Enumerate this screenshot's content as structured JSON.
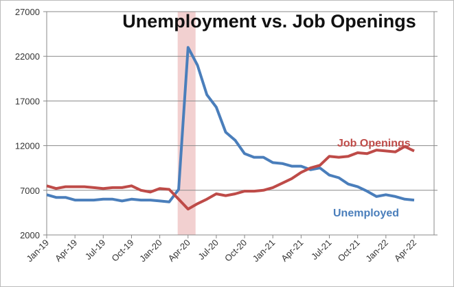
{
  "chart_data": {
    "type": "line",
    "title": "Unemployment vs. Job Openings",
    "categories": [
      "Jan-19",
      null,
      null,
      "Apr-19",
      null,
      null,
      "Jul-19",
      null,
      null,
      "Oct-19",
      null,
      null,
      "Jan-20",
      null,
      null,
      "Apr-20",
      null,
      null,
      "Jul-20",
      null,
      null,
      "Oct-20",
      null,
      null,
      "Jan-21",
      null,
      null,
      "Apr-21",
      null,
      null,
      "Jul-21",
      null,
      null,
      "Oct-21",
      null,
      null,
      "Jan-22",
      null,
      null,
      "Apr-22"
    ],
    "series": [
      {
        "name": "Unemployed",
        "color": "#4a7ebb",
        "values": [
          6500,
          6200,
          6200,
          5900,
          5900,
          5900,
          6000,
          6000,
          5800,
          6000,
          5900,
          5900,
          5800,
          5700,
          7100,
          23000,
          21000,
          17700,
          16300,
          13500,
          12600,
          11100,
          10700,
          10700,
          10100,
          10000,
          9700,
          9700,
          9300,
          9500,
          8700,
          8400,
          7700,
          7400,
          6900,
          6300,
          6500,
          6300,
          6000,
          5900
        ]
      },
      {
        "name": "Job Openings",
        "color": "#be4b48",
        "values": [
          7500,
          7200,
          7400,
          7400,
          7400,
          7300,
          7200,
          7300,
          7300,
          7500,
          7000,
          6800,
          7200,
          7100,
          6000,
          4900,
          5500,
          6000,
          6600,
          6400,
          6600,
          6900,
          6900,
          7000,
          7300,
          7800,
          8300,
          9000,
          9500,
          9800,
          10800,
          10700,
          10800,
          11200,
          11100,
          11500,
          11400,
          11300,
          11900,
          11400
        ]
      }
    ],
    "ylim": [
      2000,
      27000
    ],
    "yticks": [
      2000,
      7000,
      12000,
      17000,
      22000,
      27000
    ],
    "grid": true
  }
}
